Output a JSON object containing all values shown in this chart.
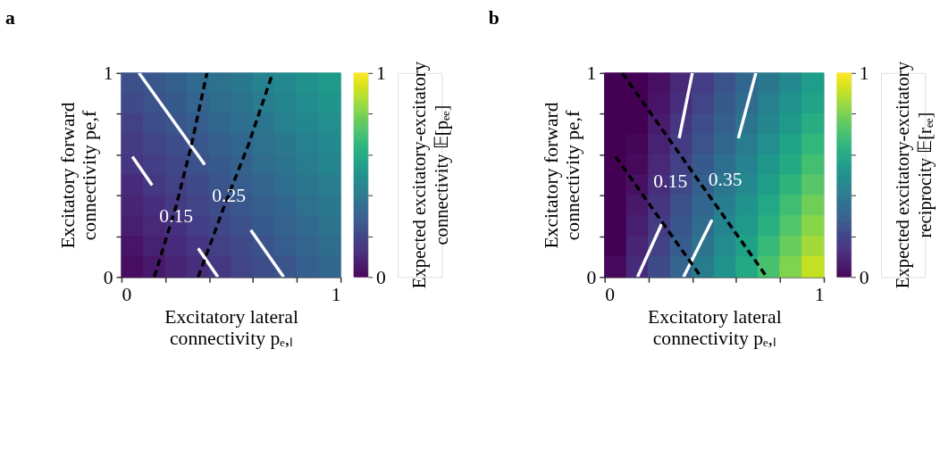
{
  "chart_data": [
    {
      "type": "heatmap",
      "title": "a",
      "xlabel": "Excitatory lateral\nconnectivity pₑ,ₗ",
      "ylabel": "Excitatory forward\nconnectivity pe,f",
      "clabel": "Expected excitatory-excitatory\nconnectivity 𝔼[pₑₑ]",
      "xlim": [
        0,
        1
      ],
      "ylim": [
        0,
        1
      ],
      "xticks": [
        0,
        {
          "value": 0.2,
          "label": null
        },
        {
          "value": 0.4,
          "label": null
        },
        {
          "value": 0.6,
          "label": null
        },
        {
          "value": 0.8,
          "label": null
        },
        1
      ],
      "yticks": [
        0,
        {
          "value": 0.2,
          "label": null
        },
        {
          "value": 0.4,
          "label": null
        },
        {
          "value": 0.6,
          "label": null
        },
        {
          "value": 0.8,
          "label": null
        },
        1
      ],
      "clim": [
        0,
        1
      ],
      "cticks": [
        0,
        {
          "value": 0.2,
          "label": null
        },
        {
          "value": 0.4,
          "label": null
        },
        {
          "value": 0.6,
          "label": null
        },
        {
          "value": 0.8,
          "label": null
        },
        1
      ],
      "cells": [
        [
          0.24,
          0.27,
          0.3,
          0.34,
          0.37,
          0.4,
          0.44,
          0.47,
          0.5,
          0.54
        ],
        [
          0.22,
          0.25,
          0.28,
          0.32,
          0.35,
          0.38,
          0.42,
          0.45,
          0.48,
          0.52
        ],
        [
          0.19,
          0.23,
          0.26,
          0.29,
          0.33,
          0.36,
          0.39,
          0.43,
          0.46,
          0.49
        ],
        [
          0.17,
          0.2,
          0.23,
          0.27,
          0.3,
          0.33,
          0.37,
          0.4,
          0.43,
          0.47
        ],
        [
          0.15,
          0.18,
          0.21,
          0.25,
          0.28,
          0.31,
          0.35,
          0.38,
          0.41,
          0.45
        ],
        [
          0.12,
          0.16,
          0.19,
          0.22,
          0.26,
          0.29,
          0.32,
          0.36,
          0.39,
          0.42
        ],
        [
          0.1,
          0.13,
          0.17,
          0.2,
          0.23,
          0.27,
          0.3,
          0.33,
          0.37,
          0.4
        ],
        [
          0.08,
          0.11,
          0.14,
          0.18,
          0.21,
          0.24,
          0.28,
          0.31,
          0.34,
          0.38
        ],
        [
          0.05,
          0.09,
          0.12,
          0.15,
          0.19,
          0.22,
          0.25,
          0.29,
          0.32,
          0.35
        ],
        [
          0.03,
          0.06,
          0.1,
          0.13,
          0.16,
          0.2,
          0.23,
          0.26,
          0.3,
          0.33
        ]
      ],
      "series": [
        {
          "type": "line",
          "color": "#ffffff",
          "line_style": "solid",
          "x": [
            0.44,
            0.35,
            null,
            0.14,
            0.05
          ],
          "values": [
            0,
            0.14,
            null,
            0.45,
            0.59
          ]
        },
        {
          "type": "line",
          "color": "#ffffff",
          "line_style": "solid",
          "x": [
            0.74,
            0.59,
            null,
            0.38,
            0.08
          ],
          "values": [
            0,
            0.23,
            null,
            0.55,
            1
          ]
        },
        {
          "type": "line",
          "color": "#000000",
          "line_style": "dashed",
          "x": [
            0.15,
            0.25,
            0.32,
            0.39
          ],
          "values": [
            0,
            0.35,
            0.65,
            1
          ]
        },
        {
          "type": "line",
          "color": "#000000",
          "line_style": "dashed",
          "x": [
            0.35,
            0.47,
            0.58,
            0.69
          ],
          "values": [
            0,
            0.35,
            0.65,
            1
          ]
        }
      ],
      "annotations": [
        {
          "text": "0.15",
          "x": 0.25,
          "y": 0.3
        },
        {
          "text": "0.25",
          "x": 0.49,
          "y": 0.4
        }
      ],
      "grid": false
    },
    {
      "type": "heatmap",
      "title": "b",
      "xlabel": "Excitatory lateral\nconnectivity pₑ,ₗ",
      "ylabel": "Excitatory forward\nconnectivity pe,f",
      "clabel": "Expected excitatory-excitatory\nreciprocity 𝔼[rₑₑ]",
      "xlim": [
        0,
        1
      ],
      "ylim": [
        0,
        1
      ],
      "xticks": [
        0,
        {
          "value": 0.2,
          "label": null
        },
        {
          "value": 0.4,
          "label": null
        },
        {
          "value": 0.6,
          "label": null
        },
        {
          "value": 0.8,
          "label": null
        },
        1
      ],
      "yticks": [
        0,
        {
          "value": 0.2,
          "label": null
        },
        {
          "value": 0.4,
          "label": null
        },
        {
          "value": 0.6,
          "label": null
        },
        {
          "value": 0.8,
          "label": null
        },
        1
      ],
      "clim": [
        0,
        1
      ],
      "cticks": [
        0,
        {
          "value": 0.2,
          "label": null
        },
        {
          "value": 0.4,
          "label": null
        },
        {
          "value": 0.6,
          "label": null
        },
        {
          "value": 0.8,
          "label": null
        },
        1
      ],
      "cells": [
        [
          0,
          0,
          0.04,
          0.11,
          0.18,
          0.25,
          0.33,
          0.4,
          0.47,
          0.55
        ],
        [
          0,
          0,
          0.05,
          0.13,
          0.2,
          0.28,
          0.35,
          0.43,
          0.51,
          0.58
        ],
        [
          0,
          0,
          0.07,
          0.15,
          0.23,
          0.3,
          0.38,
          0.46,
          0.54,
          0.62
        ],
        [
          0,
          0.01,
          0.09,
          0.17,
          0.25,
          0.33,
          0.41,
          0.49,
          0.58,
          0.66
        ],
        [
          0,
          0.02,
          0.11,
          0.19,
          0.28,
          0.36,
          0.44,
          0.53,
          0.61,
          0.7
        ],
        [
          0,
          0.04,
          0.13,
          0.21,
          0.3,
          0.39,
          0.47,
          0.56,
          0.65,
          0.74
        ],
        [
          0,
          0.06,
          0.15,
          0.24,
          0.33,
          0.42,
          0.51,
          0.6,
          0.69,
          0.78
        ],
        [
          0,
          0.08,
          0.17,
          0.26,
          0.35,
          0.45,
          0.54,
          0.63,
          0.73,
          0.82
        ],
        [
          0,
          0.1,
          0.19,
          0.29,
          0.38,
          0.48,
          0.57,
          0.67,
          0.77,
          0.86
        ],
        [
          0.02,
          0.12,
          0.22,
          0.32,
          0.41,
          0.51,
          0.61,
          0.71,
          0.81,
          0.91
        ]
      ],
      "series": [
        {
          "type": "line",
          "color": "#ffffff",
          "line_style": "solid",
          "x": [
            0.15,
            0.26,
            null,
            0.34,
            0.4
          ],
          "values": [
            0,
            0.26,
            null,
            0.68,
            1
          ]
        },
        {
          "type": "line",
          "color": "#ffffff",
          "line_style": "solid",
          "x": [
            0.36,
            0.49,
            null,
            0.61,
            0.69
          ],
          "values": [
            0,
            0.28,
            null,
            0.68,
            1
          ]
        },
        {
          "type": "line",
          "color": "#000000",
          "line_style": "dashed",
          "x": [
            0.08,
            0.74
          ],
          "values": [
            1,
            0
          ]
        },
        {
          "type": "line",
          "color": "#000000",
          "line_style": "dashed",
          "x": [
            0.05,
            0.44
          ],
          "values": [
            0.59,
            0
          ]
        }
      ],
      "annotations": [
        "0.15",
        "0.35"
      ],
      "grid": false
    }
  ]
}
